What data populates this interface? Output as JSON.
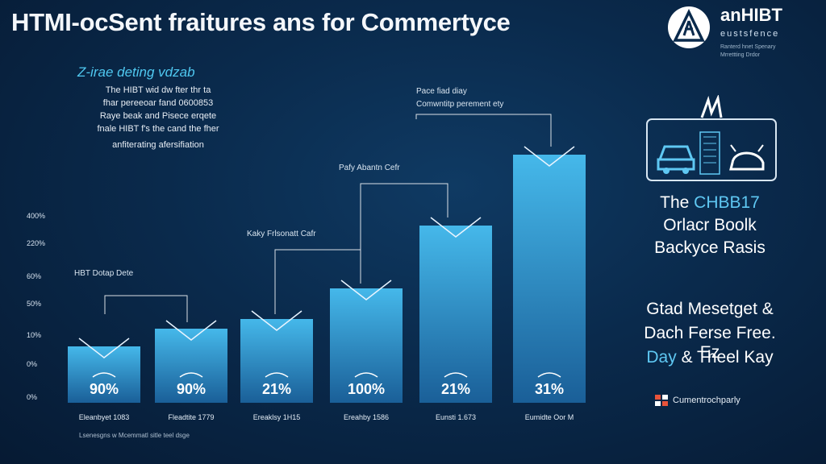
{
  "header": {
    "title": "HTMI-ocSent fraitures ans for Commertyce"
  },
  "brand": {
    "name": "anHIBT",
    "subtitle": "eustsfence",
    "tagline_1": "Ranterd hnet Spenary",
    "tagline_2": "Mrrettting Drdor"
  },
  "intro": {
    "title": "Z-irae deting vdzab",
    "lines": [
      "The HIBT wid dw fter thr ta",
      "fhar pereeoar fand 0600853",
      "Raye beak and Pisece erqete",
      "fnale HIBT f's the cand the fher",
      "anfiterating afersifiation"
    ]
  },
  "notes": {
    "top_1": "Pace fiad diay",
    "top_2": "Comwntitp perement ety",
    "mid": "Pafy Abantn Cefr",
    "lower": "Kaky Frlsonatt Cafr",
    "left": "HBT Dotap Dete"
  },
  "chart_data": {
    "type": "bar",
    "title": "",
    "xlabel": "",
    "ylabel": "",
    "yticks": [
      "400%",
      "220%",
      "60%",
      "50%",
      "10%",
      "0%",
      "0%"
    ],
    "categories": [
      "Eleanbyet 1083",
      "Fleadtite 1779",
      "Ereaklsy 1H15",
      "Ereahby 1586",
      "Eunsti 1.673",
      "Eumidte Oor M"
    ],
    "values": [
      90,
      90,
      21,
      100,
      21,
      31
    ],
    "value_labels": [
      "90%",
      "90%",
      "21%",
      "100%",
      "21%",
      "31%"
    ],
    "bar_color": "#3fb4e6"
  },
  "footnote": "Lsenesgns w Mcemmatl sitle teel dsge",
  "panel": {
    "line_1_a": "The ",
    "line_1_b": "CHBB17",
    "line_2": "Orlacr Boolk",
    "line_3": "Backyce Rasis",
    "line_4": "Gtad Mesetget &",
    "line_5": "Dach Ferse Free. Ez",
    "line_6_a": "Day",
    "line_6_b": " & Theel Kay",
    "footer": "Cumentrochparly"
  },
  "colors": {
    "accent": "#4fc8f0",
    "bar": "#3fb4e6",
    "background": "#0a2a4c"
  }
}
